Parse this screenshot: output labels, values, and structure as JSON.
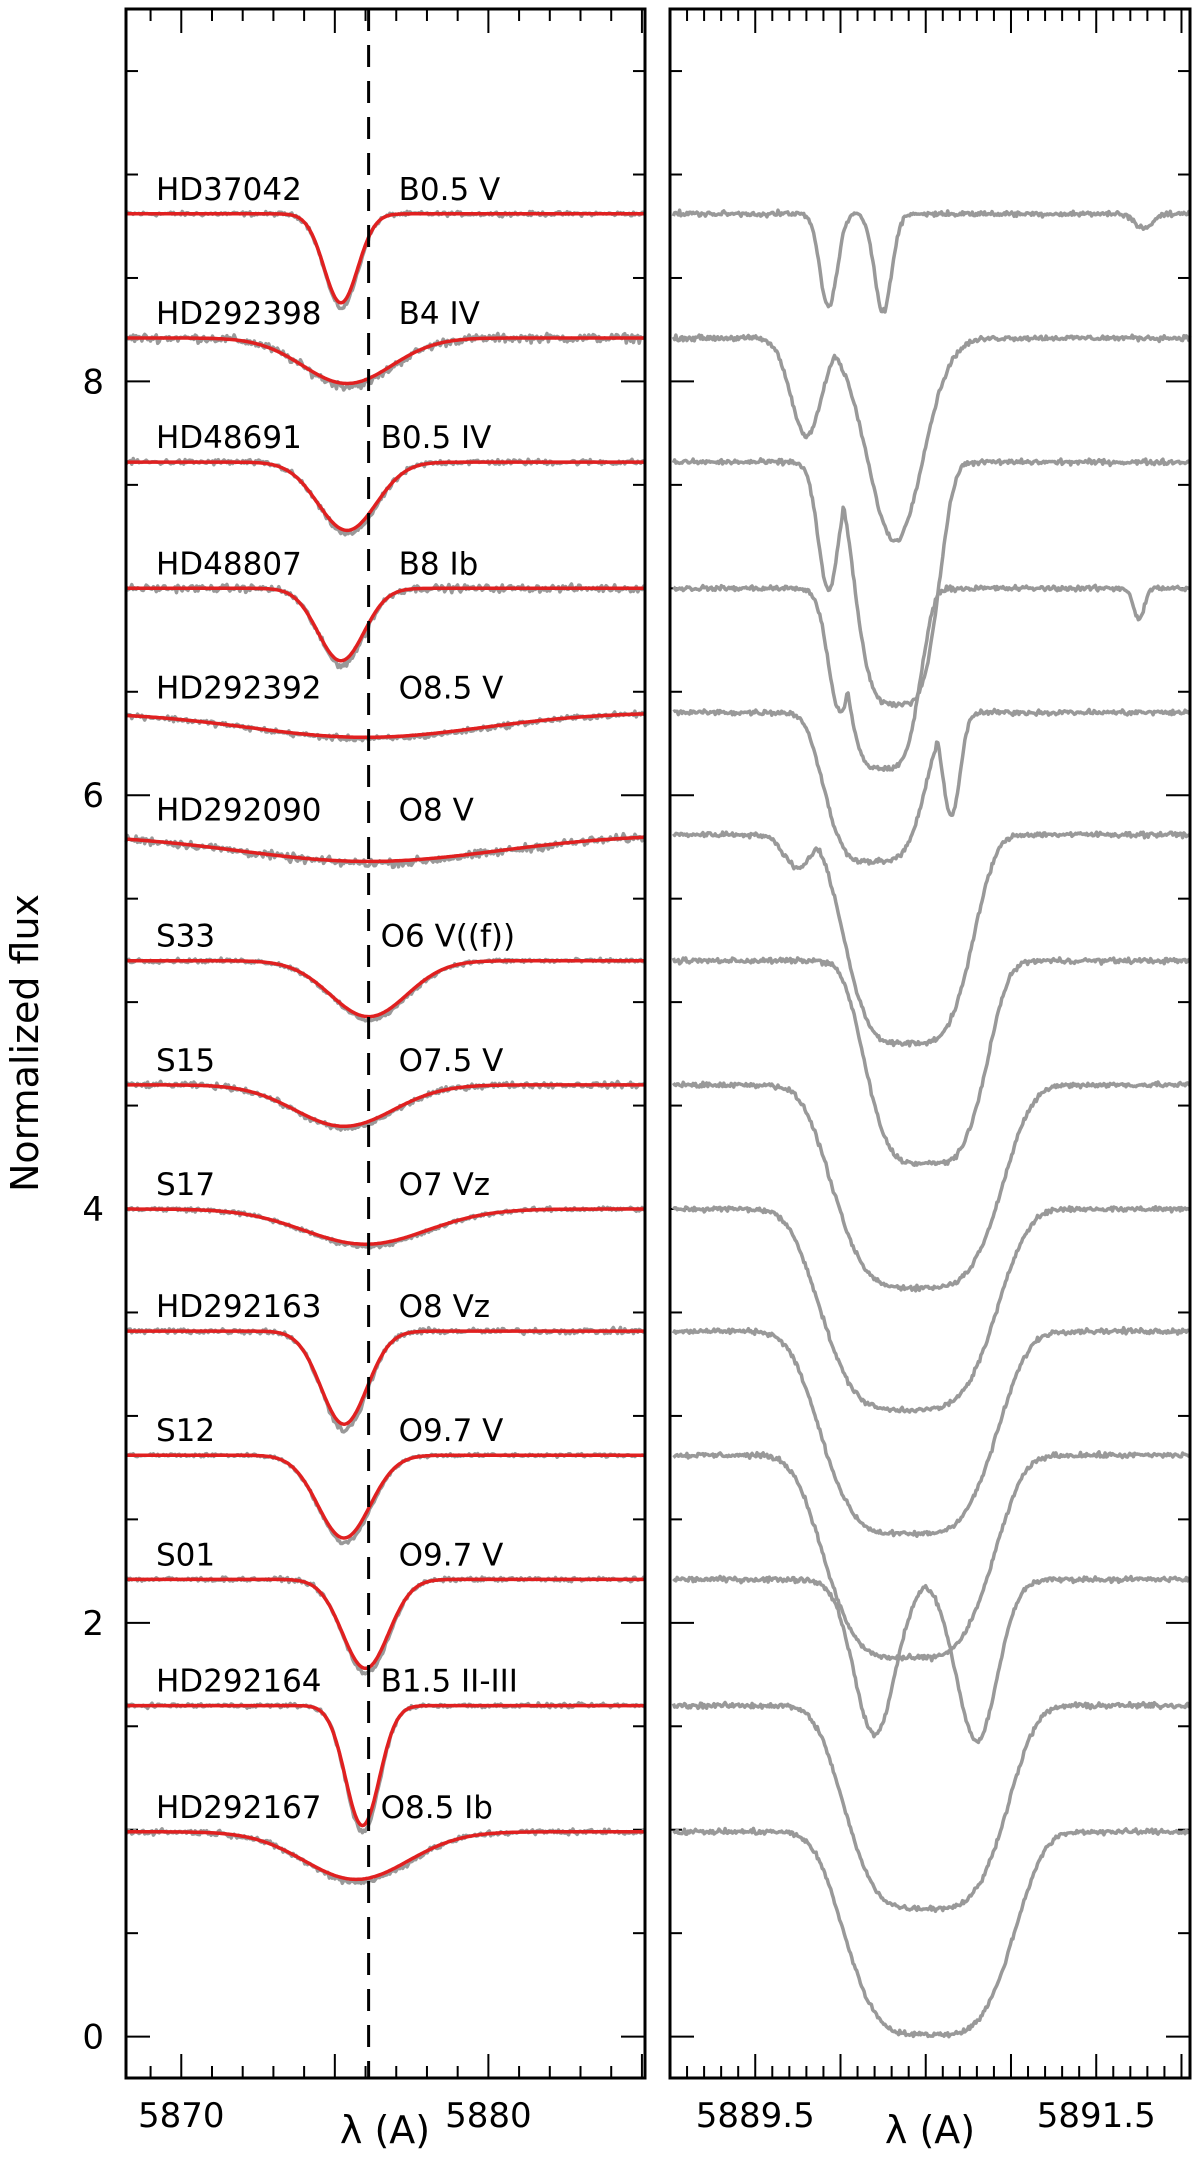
{
  "chart_data": [
    {
      "type": "line",
      "panel": "left",
      "ylabel": "Normalized flux",
      "xlabel": "λ (A)",
      "xlim": [
        5868.2,
        5885.1
      ],
      "ylim": [
        -0.2,
        9.8
      ],
      "x_tick_labels": [
        "5870",
        "5880"
      ],
      "y_tick_labels": [
        "0",
        "2",
        "4",
        "6",
        "8"
      ],
      "reference_line_wavelength": 5876.1,
      "series_colors": {
        "observed": "#999999",
        "model_fit": "#e02020",
        "reference": "#000000"
      },
      "spectra": [
        {
          "star": "HD37042",
          "sptype": "B0.5 V",
          "continuum": 8.81,
          "center": 5875.2,
          "depth": 0.43,
          "width": 0.55,
          "obs_noise": 0.015
        },
        {
          "star": "HD292398",
          "sptype": "B4 IV",
          "continuum": 8.21,
          "center": 5875.4,
          "depth": 0.22,
          "width": 1.45,
          "obs_noise": 0.03
        },
        {
          "star": "HD48691",
          "sptype": "B0.5 IV",
          "continuum": 7.61,
          "center": 5875.4,
          "depth": 0.33,
          "width": 0.95,
          "obs_noise": 0.02
        },
        {
          "star": "HD48807",
          "sptype": "B8 Ib",
          "continuum": 7.0,
          "center": 5875.2,
          "depth": 0.35,
          "width": 0.75,
          "obs_noise": 0.025
        },
        {
          "star": "HD292392",
          "sptype": "O8.5 V",
          "continuum": 6.4,
          "center": 5876.0,
          "depth": 0.12,
          "width": 3.8,
          "obs_noise": 0.02
        },
        {
          "star": "HD292090",
          "sptype": "O8 V",
          "continuum": 5.81,
          "center": 5876.1,
          "depth": 0.13,
          "width": 4.2,
          "obs_noise": 0.03
        },
        {
          "star": "S33",
          "sptype": "O6 V((f))",
          "continuum": 5.2,
          "center": 5876.1,
          "depth": 0.27,
          "width": 1.25,
          "obs_noise": 0.015
        },
        {
          "star": "S15",
          "sptype": "O7.5 V",
          "continuum": 4.6,
          "center": 5875.3,
          "depth": 0.2,
          "width": 1.6,
          "obs_noise": 0.02
        },
        {
          "star": "S17",
          "sptype": "O7 Vz",
          "continuum": 4.0,
          "center": 5876.0,
          "depth": 0.17,
          "width": 2.0,
          "obs_noise": 0.015
        },
        {
          "star": "HD292163",
          "sptype": "O8 Vz",
          "continuum": 3.41,
          "center": 5875.3,
          "depth": 0.45,
          "width": 0.75,
          "obs_noise": 0.02
        },
        {
          "star": "S12",
          "sptype": "O9.7 V",
          "continuum": 2.81,
          "center": 5875.3,
          "depth": 0.4,
          "width": 0.85,
          "obs_noise": 0.012
        },
        {
          "star": "S01",
          "sptype": "O9.7 V",
          "continuum": 2.21,
          "center": 5876.0,
          "depth": 0.43,
          "width": 0.75,
          "obs_noise": 0.015
        },
        {
          "star": "HD292164",
          "sptype": "B1.5 II-III",
          "continuum": 1.6,
          "center": 5875.9,
          "depth": 0.58,
          "width": 0.55,
          "obs_noise": 0.015
        },
        {
          "star": "HD292167",
          "sptype": "O8.5 Ib",
          "continuum": 0.99,
          "center": 5875.7,
          "depth": 0.23,
          "width": 1.7,
          "obs_noise": 0.02
        }
      ]
    },
    {
      "type": "line",
      "panel": "right",
      "xlabel": "λ (A)",
      "xlim": [
        5889.0,
        5892.05
      ],
      "ylim": [
        -0.2,
        9.8
      ],
      "x_tick_labels": [
        "5889.5",
        "5891.5"
      ],
      "series_colors": {
        "observed": "#999999"
      },
      "spectra": [
        {
          "continuum": 8.81,
          "lines": [
            {
              "center": 5889.93,
              "depth": 0.45,
              "width": 0.05
            },
            {
              "center": 5890.25,
              "depth": 0.47,
              "width": 0.05
            },
            {
              "center": 5891.78,
              "depth": 0.07,
              "width": 0.05
            }
          ]
        },
        {
          "continuum": 8.21,
          "lines": [
            {
              "center": 5889.8,
              "depth": 0.47,
              "width": 0.09
            },
            {
              "center": 5890.32,
              "depth": 0.98,
              "width": 0.16
            }
          ]
        },
        {
          "continuum": 7.61,
          "lines": [
            {
              "center": 5889.93,
              "depth": 0.62,
              "width": 0.06
            },
            {
              "center": 5890.33,
              "depth": 1.17,
              "width": 0.25
            }
          ]
        },
        {
          "continuum": 7.0,
          "lines": [
            {
              "center": 5890.0,
              "depth": 0.6,
              "width": 0.07
            },
            {
              "center": 5890.25,
              "depth": 0.87,
              "width": 0.22
            },
            {
              "center": 5891.75,
              "depth": 0.15,
              "width": 0.03
            }
          ]
        },
        {
          "continuum": 6.4,
          "lines": [
            {
              "center": 5890.2,
              "depth": 0.72,
              "width": 0.3
            },
            {
              "center": 5890.65,
              "depth": 0.5,
              "width": 0.05
            }
          ]
        },
        {
          "continuum": 5.81,
          "lines": [
            {
              "center": 5889.75,
              "depth": 0.16,
              "width": 0.08
            },
            {
              "center": 5890.4,
              "depth": 1.01,
              "width": 0.38
            }
          ]
        },
        {
          "continuum": 5.2,
          "lines": [
            {
              "center": 5890.5,
              "depth": 0.98,
              "width": 0.36
            }
          ]
        },
        {
          "continuum": 4.6,
          "lines": [
            {
              "center": 5890.45,
              "depth": 0.98,
              "width": 0.5
            }
          ]
        },
        {
          "continuum": 4.0,
          "lines": [
            {
              "center": 5890.4,
              "depth": 0.97,
              "width": 0.52
            }
          ]
        },
        {
          "continuum": 3.41,
          "lines": [
            {
              "center": 5890.4,
              "depth": 0.98,
              "width": 0.52
            }
          ]
        },
        {
          "continuum": 2.81,
          "lines": [
            {
              "center": 5890.4,
              "depth": 0.98,
              "width": 0.5
            }
          ]
        },
        {
          "continuum": 2.21,
          "lines": [
            {
              "center": 5890.2,
              "depth": 0.75,
              "width": 0.12
            },
            {
              "center": 5890.8,
              "depth": 0.78,
              "width": 0.12
            }
          ]
        },
        {
          "continuum": 1.6,
          "lines": [
            {
              "center": 5890.5,
              "depth": 0.98,
              "width": 0.48
            }
          ]
        },
        {
          "continuum": 0.99,
          "lines": [
            {
              "center": 5889.97,
              "depth": 0.28,
              "width": 0.04
            },
            {
              "center": 5890.52,
              "depth": 0.98,
              "width": 0.5
            }
          ]
        }
      ]
    }
  ]
}
